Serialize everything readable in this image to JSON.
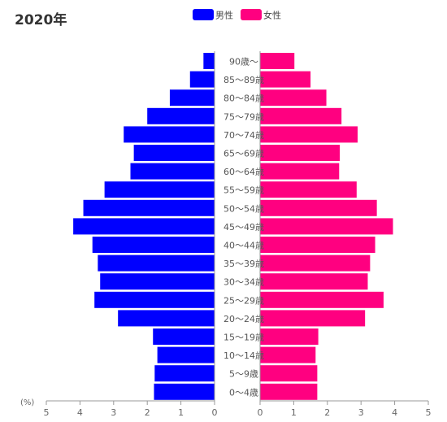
{
  "chart_data": {
    "type": "bar",
    "title": "2020年",
    "unit_label": "(%)",
    "orientation": "horizontal-pyramid",
    "categories": [
      "0〜4歳",
      "5〜9歳",
      "10〜14歳",
      "15〜19歳",
      "20〜24歳",
      "25〜29歳",
      "30〜34歳",
      "35〜39歳",
      "40〜44歳",
      "45〜49歳",
      "50〜54歳",
      "55〜59歳",
      "60〜64歳",
      "65〜69歳",
      "70〜74歳",
      "75〜79歳",
      "80〜84歳",
      "85〜89歳",
      "90歳〜"
    ],
    "series": [
      {
        "name": "男性",
        "color": "#0000ff",
        "values": [
          1.8,
          1.78,
          1.7,
          1.83,
          2.87,
          3.57,
          3.4,
          3.47,
          3.63,
          4.2,
          3.9,
          3.27,
          2.5,
          2.4,
          2.7,
          2.0,
          1.33,
          0.73,
          0.33
        ]
      },
      {
        "name": "女性",
        "color": "#ff0080",
        "values": [
          1.7,
          1.7,
          1.65,
          1.73,
          3.12,
          3.67,
          3.2,
          3.27,
          3.42,
          3.95,
          3.47,
          2.87,
          2.35,
          2.37,
          2.9,
          2.42,
          1.97,
          1.5,
          1.02
        ]
      }
    ],
    "left_axis": {
      "ticks": [
        "5",
        "4",
        "3",
        "2",
        "1",
        "0"
      ],
      "range": [
        5,
        0
      ]
    },
    "right_axis": {
      "ticks": [
        "0",
        "1",
        "2",
        "3",
        "4",
        "5"
      ],
      "range": [
        0,
        5
      ]
    },
    "legend_position": "top-center",
    "grid": false
  }
}
